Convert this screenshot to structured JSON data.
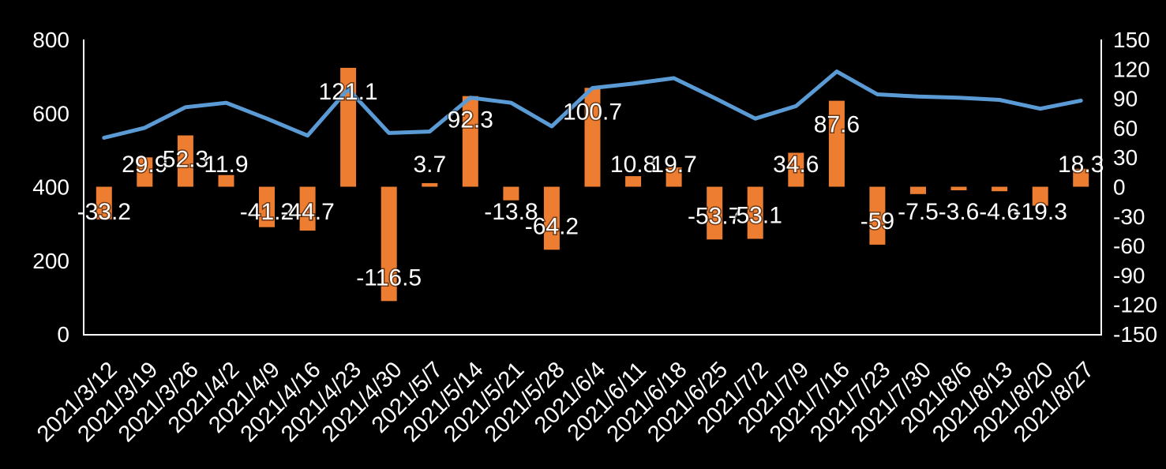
{
  "chart_data": {
    "type": "combo",
    "title": "",
    "legend": "none",
    "grid": false,
    "background": "#000000",
    "text_color": "#FFFFFF",
    "categories": [
      "2021/3/12",
      "2021/3/19",
      "2021/3/26",
      "2021/4/2",
      "2021/4/9",
      "2021/4/16",
      "2021/4/23",
      "2021/4/30",
      "2021/5/7",
      "2021/5/14",
      "2021/5/21",
      "2021/5/28",
      "2021/6/4",
      "2021/6/11",
      "2021/6/18",
      "2021/6/25",
      "2021/7/2",
      "2021/7/9",
      "2021/7/16",
      "2021/7/23",
      "2021/7/30",
      "2021/8/6",
      "2021/8/13",
      "2021/8/20",
      "2021/8/27"
    ],
    "series": [
      {
        "name": "weekly-net-flow-bars",
        "type": "bar",
        "axis": "right",
        "color": "#ED7D31",
        "values": [
          -33.2,
          29.9,
          52.3,
          11.9,
          -41.2,
          -44.7,
          121.1,
          -116.5,
          3.7,
          92.3,
          -13.8,
          -64.2,
          100.7,
          10.8,
          19.7,
          -53.7,
          -53.1,
          34.6,
          87.6,
          -59,
          -7.5,
          -3.6,
          -4.6,
          -19.3,
          18.3
        ],
        "labels": [
          "-33.2",
          "29.9",
          "52.3",
          "11.9",
          "-41.2",
          "-44.7",
          "121.1",
          "-116.5",
          "3.7",
          "92.3",
          "-13.8",
          "-64.2",
          "100.7",
          "10.8",
          "19.7",
          "-53.7",
          "-53.1",
          "34.6",
          "87.6",
          "-59",
          "-7.5",
          "-3.6",
          "-4.6",
          "-19.3",
          "18.3"
        ]
      },
      {
        "name": "cumulative-level-line",
        "type": "line",
        "axis": "left",
        "color": "#5B9BD5",
        "values": [
          533,
          560,
          616,
          628,
          585,
          539,
          665,
          546,
          550,
          642,
          628,
          564,
          668,
          680,
          695,
          641,
          585,
          619,
          713,
          651,
          645,
          642,
          636,
          612,
          634
        ]
      }
    ],
    "axes": {
      "left": {
        "min": 0,
        "max": 800,
        "ticks": [
          800,
          600,
          400,
          200,
          0
        ]
      },
      "right": {
        "min": -150,
        "max": 150,
        "ticks": [
          150,
          120,
          90,
          60,
          30,
          0,
          -30,
          -60,
          -90,
          -120,
          -150
        ]
      }
    }
  }
}
